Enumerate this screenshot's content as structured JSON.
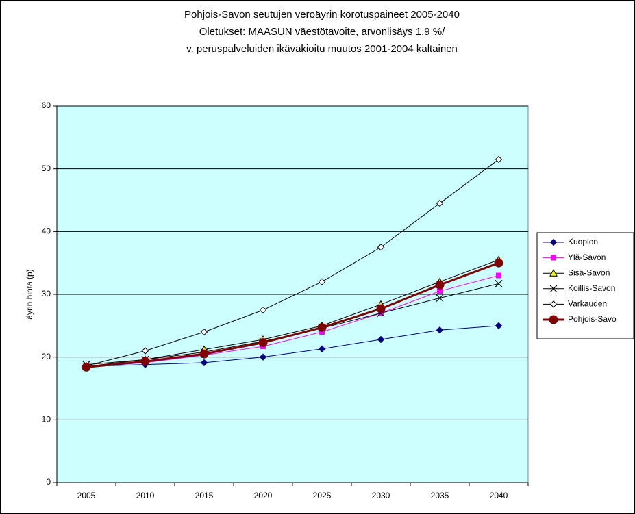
{
  "chart_data": {
    "type": "line",
    "title": [
      "Pohjois-Savon seutujen veroäyrin korotuspaineet 2005-2040",
      "Oletukset: MAASUN väestötavoite, arvonlisäys 1,9 %/",
      "v, peruspalveluiden ikävakioitu muutos 2001-2004 kaltainen"
    ],
    "y_label": "äyrin hinta (p)",
    "categories": [
      "2005",
      "2010",
      "2015",
      "2020",
      "2025",
      "2030",
      "2035",
      "2040"
    ],
    "ylim": [
      0,
      60
    ],
    "yticks": [
      0,
      10,
      20,
      30,
      40,
      50,
      60
    ],
    "grid": true,
    "legend": "right",
    "background": "#ccffff",
    "series": [
      {
        "name": "Kuopion",
        "color": "#000080",
        "marker": "diamond",
        "marker_fill": "#000080",
        "values": [
          18.5,
          18.8,
          19.1,
          20.0,
          21.3,
          22.8,
          24.3,
          25.0
        ]
      },
      {
        "name": "Ylä-Savon",
        "color": "#ff00ff",
        "marker": "square",
        "marker_fill": "#ff00ff",
        "values": [
          18.4,
          19.1,
          20.3,
          21.7,
          24.0,
          27.0,
          30.5,
          33.0
        ]
      },
      {
        "name": "Sisä-Savon",
        "color": "#000000",
        "marker": "triangle",
        "marker_fill": "#ffff00",
        "values": [
          18.5,
          19.6,
          21.2,
          22.8,
          25.0,
          28.4,
          32.0,
          35.5
        ]
      },
      {
        "name": "Koillis-Savon",
        "color": "#000000",
        "marker": "x",
        "marker_fill": "none",
        "values": [
          18.8,
          19.6,
          20.8,
          22.5,
          24.6,
          27.0,
          29.4,
          31.7
        ]
      },
      {
        "name": "Varkauden",
        "color": "#000000",
        "marker": "diamond",
        "marker_fill": "#ffffff",
        "values": [
          18.6,
          21.0,
          24.0,
          27.5,
          32.0,
          37.5,
          44.5,
          51.5
        ]
      },
      {
        "name": "Pohjois-Savo",
        "color": "#800000",
        "marker": "circle",
        "marker_fill": "#800000",
        "values": [
          18.4,
          19.3,
          20.5,
          22.3,
          24.7,
          27.7,
          31.5,
          35.0
        ]
      }
    ]
  }
}
